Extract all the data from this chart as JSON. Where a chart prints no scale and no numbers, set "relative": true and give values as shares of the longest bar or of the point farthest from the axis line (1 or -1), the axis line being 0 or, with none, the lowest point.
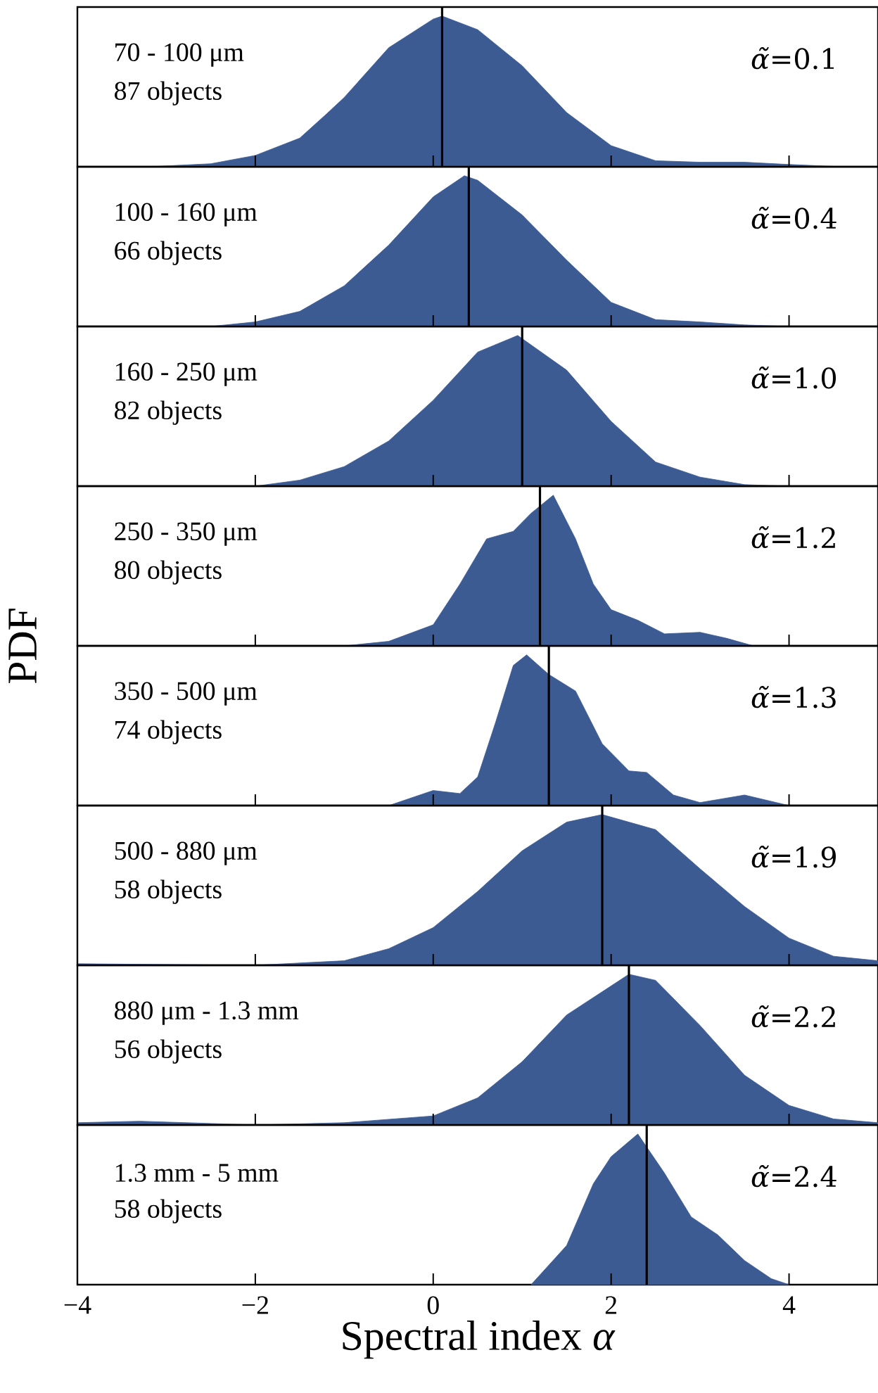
{
  "chart_data": [
    {
      "type": "area",
      "relative": true,
      "color": "#3b5b92",
      "xlim": [
        -4,
        5
      ],
      "xticks": [
        -4,
        -2,
        0,
        2,
        4
      ],
      "tick_labels": false,
      "x": [
        -3.2,
        -2.5,
        -2,
        -1.5,
        -1.2,
        -1,
        -0.5,
        0,
        0.1,
        0.5,
        1,
        1.5,
        2,
        2.5,
        3,
        3.5,
        4,
        4.6
      ],
      "values": [
        0,
        0.02,
        0.075,
        0.19,
        0.35,
        0.46,
        0.79,
        0.98,
        1,
        0.91,
        0.67,
        0.36,
        0.14,
        0.04,
        0.03,
        0.03,
        0.015,
        0
      ],
      "ref_lines": [
        {
          "axis": "x",
          "value": 0.1,
          "color": "#000000"
        }
      ],
      "annotations": [
        "70 - 100 μm",
        "87 objects",
        "*α̃*=0.1"
      ]
    },
    {
      "type": "area",
      "relative": true,
      "color": "#3b5b92",
      "xlim": [
        -4,
        5
      ],
      "xticks": [
        -4,
        -2,
        0,
        2,
        4
      ],
      "tick_labels": false,
      "x": [
        -2.5,
        -2,
        -1.5,
        -1,
        -0.5,
        0,
        0.35,
        0.5,
        1,
        1.5,
        2,
        2.5,
        3,
        3.5,
        4
      ],
      "values": [
        0,
        0.03,
        0.1,
        0.27,
        0.54,
        0.86,
        1,
        0.97,
        0.74,
        0.44,
        0.16,
        0.045,
        0.03,
        0.01,
        0
      ],
      "ref_lines": [
        {
          "axis": "x",
          "value": 0.4,
          "color": "#000000"
        }
      ],
      "annotations": [
        "100 - 160 μm",
        "66 objects",
        "*α̃*=0.4"
      ]
    },
    {
      "type": "area",
      "relative": true,
      "color": "#3b5b92",
      "xlim": [
        -4,
        5
      ],
      "xticks": [
        -4,
        -2,
        0,
        2,
        4
      ],
      "tick_labels": false,
      "x": [
        -2,
        -1.5,
        -1,
        -0.5,
        0,
        0.5,
        0.95,
        1.5,
        2,
        2.5,
        3,
        3.5,
        4
      ],
      "values": [
        0,
        0.04,
        0.13,
        0.3,
        0.57,
        0.89,
        1,
        0.77,
        0.43,
        0.16,
        0.06,
        0.01,
        0
      ],
      "ref_lines": [
        {
          "axis": "x",
          "value": 1.0,
          "color": "#000000"
        }
      ],
      "annotations": [
        "160 - 250 μm",
        "82 objects",
        "*α̃*=1.0"
      ]
    },
    {
      "type": "area",
      "relative": true,
      "color": "#3b5b92",
      "xlim": [
        -4,
        5
      ],
      "xticks": [
        -4,
        -2,
        0,
        2,
        4
      ],
      "tick_labels": false,
      "ylabel": "PDF",
      "x": [
        -1,
        -0.5,
        0,
        0.3,
        0.6,
        0.9,
        1.1,
        1.35,
        1.6,
        1.8,
        2,
        2.3,
        2.6,
        3,
        3.3,
        3.6
      ],
      "values": [
        0,
        0.03,
        0.14,
        0.41,
        0.71,
        0.76,
        0.88,
        1,
        0.71,
        0.41,
        0.24,
        0.17,
        0.08,
        0.09,
        0.05,
        0
      ],
      "ref_lines": [
        {
          "axis": "x",
          "value": 1.2,
          "color": "#000000"
        }
      ],
      "annotations": [
        "250 - 350 μm",
        "80 objects",
        "*α̃*=1.2"
      ]
    },
    {
      "type": "area",
      "relative": true,
      "color": "#3b5b92",
      "xlim": [
        -4,
        5
      ],
      "xticks": [
        -4,
        -2,
        0,
        2,
        4
      ],
      "tick_labels": false,
      "x": [
        -0.5,
        0,
        0.3,
        0.5,
        0.7,
        0.9,
        1.05,
        1.3,
        1.6,
        1.9,
        2.2,
        2.4,
        2.7,
        3,
        3.5,
        4
      ],
      "values": [
        0,
        0.1,
        0.08,
        0.19,
        0.55,
        0.93,
        1,
        0.87,
        0.76,
        0.41,
        0.23,
        0.22,
        0.07,
        0.02,
        0.07,
        0
      ],
      "ref_lines": [
        {
          "axis": "x",
          "value": 1.3,
          "color": "#000000"
        }
      ],
      "annotations": [
        "350 - 500 μm",
        "74 objects",
        "*α̃*=1.3"
      ]
    },
    {
      "type": "area",
      "relative": true,
      "color": "#3b5b92",
      "xlim": [
        -4,
        5
      ],
      "xticks": [
        -4,
        -2,
        0,
        2,
        4
      ],
      "tick_labels": false,
      "x": [
        -4,
        -3,
        -2,
        -1,
        -0.5,
        0,
        0.5,
        1,
        1.5,
        1.9,
        2.5,
        3,
        3.5,
        4,
        4.5,
        5
      ],
      "values": [
        0.01,
        0.005,
        0,
        0.03,
        0.11,
        0.25,
        0.49,
        0.76,
        0.95,
        1,
        0.9,
        0.64,
        0.39,
        0.18,
        0.06,
        0.03
      ],
      "ref_lines": [
        {
          "axis": "x",
          "value": 1.9,
          "color": "#000000"
        }
      ],
      "annotations": [
        "500 - 880 μm",
        "58 objects",
        "*α̃*=1.9"
      ]
    },
    {
      "type": "area",
      "relative": true,
      "color": "#3b5b92",
      "xlim": [
        -4,
        5
      ],
      "xticks": [
        -4,
        -2,
        0,
        2,
        4
      ],
      "tick_labels": false,
      "x": [
        -4,
        -3.3,
        -2.5,
        -2,
        -1,
        0,
        0.5,
        1,
        1.5,
        2.2,
        2.5,
        3,
        3.5,
        4,
        4.5,
        5
      ],
      "values": [
        0.015,
        0.025,
        0.01,
        0,
        0.015,
        0.06,
        0.18,
        0.42,
        0.73,
        1,
        0.96,
        0.66,
        0.33,
        0.13,
        0.04,
        0.015
      ],
      "ref_lines": [
        {
          "axis": "x",
          "value": 2.2,
          "color": "#000000"
        }
      ],
      "annotations": [
        "880 μm - 1.3 mm",
        "56 objects",
        "*α̃*=2.2"
      ]
    },
    {
      "type": "area",
      "relative": true,
      "color": "#3b5b92",
      "xlim": [
        -4,
        5
      ],
      "xticks": [
        {
          "value": -4,
          "label": "−4"
        },
        {
          "value": -2,
          "label": "−2"
        },
        0,
        2,
        4
      ],
      "tick_labels": "x",
      "xlabel": "Spectral index *α*",
      "x": [
        1.1,
        1.5,
        1.8,
        2,
        2.3,
        2.6,
        2.9,
        3.2,
        3.5,
        3.8,
        4
      ],
      "values": [
        0,
        0.26,
        0.67,
        0.85,
        1,
        0.74,
        0.45,
        0.33,
        0.16,
        0.04,
        0
      ],
      "ref_lines": [
        {
          "axis": "x",
          "value": 2.4,
          "color": "#000000"
        }
      ],
      "annotations": [
        "1.3 mm - 5 mm",
        "58 objects",
        "*α̃*=2.4"
      ]
    }
  ]
}
